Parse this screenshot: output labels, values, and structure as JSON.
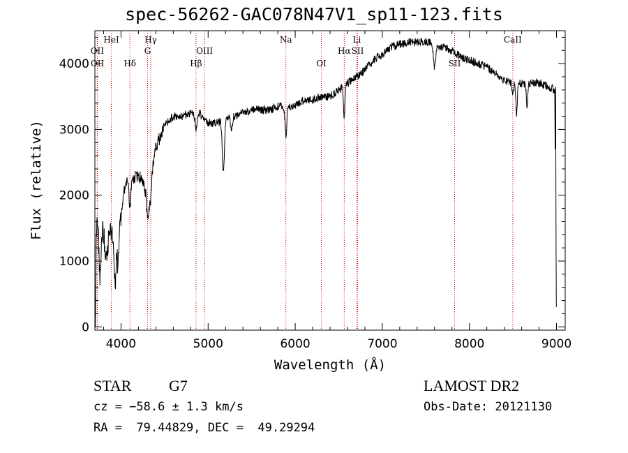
{
  "title": "spec-56262-GAC078N47V1_sp11-123.fits",
  "info": {
    "object_class": "STAR",
    "subclass": "G7",
    "survey": "LAMOST DR2",
    "cz": "cz = −58.6 ± 1.3 km/s",
    "obs_date": "Obs-Date: 20121130",
    "radec": "RA =  79.44829, DEC =  49.29294"
  },
  "chart_data": {
    "type": "line",
    "title": "spec-56262-GAC078N47V1_sp11-123.fits",
    "xlabel": "Wavelength (Å)",
    "ylabel": "Flux (relative)",
    "xlim": [
      3700,
      9100
    ],
    "ylim": [
      -50,
      4500
    ],
    "xticks": [
      4000,
      5000,
      6000,
      7000,
      8000,
      9000
    ],
    "yticks": [
      0,
      1000,
      2000,
      3000,
      4000
    ],
    "line_color": "#000000",
    "marker_color": "#cc0000",
    "spectral_lines": [
      {
        "label": "OII",
        "wavelength": 3727,
        "row": 1
      },
      {
        "label": "OII",
        "wavelength": 3729,
        "row": 2
      },
      {
        "label": "HeI",
        "wavelength": 3889,
        "row": 0
      },
      {
        "label": "Hδ",
        "wavelength": 4102,
        "row": 2
      },
      {
        "label": "Hγ",
        "wavelength": 4341,
        "row": 0
      },
      {
        "label": "G",
        "wavelength": 4305,
        "row": 1
      },
      {
        "label": "Hβ",
        "wavelength": 4861,
        "row": 2
      },
      {
        "label": "OIII",
        "wavelength": 4959,
        "row": 1
      },
      {
        "label": "Na",
        "wavelength": 5893,
        "row": 0
      },
      {
        "label": "OI",
        "wavelength": 6300,
        "row": 2
      },
      {
        "label": "Hα",
        "wavelength": 6563,
        "row": 1
      },
      {
        "label": "Li",
        "wavelength": 6708,
        "row": 0
      },
      {
        "label": "SII",
        "wavelength": 6717,
        "row": 1
      },
      {
        "label": "SII",
        "wavelength": 7830,
        "row": 2
      },
      {
        "label": "CaII",
        "wavelength": 8498,
        "row": 0
      }
    ],
    "continuum": {
      "x": [
        3700,
        3720,
        3750,
        3800,
        3850,
        3900,
        3950,
        4000,
        4050,
        4100,
        4150,
        4200,
        4250,
        4300,
        4350,
        4400,
        4450,
        4500,
        4550,
        4600,
        4700,
        4800,
        4900,
        5000,
        5100,
        5200,
        5300,
        5400,
        5500,
        5600,
        5700,
        5800,
        5900,
        6000,
        6100,
        6200,
        6300,
        6400,
        6500,
        6600,
        6700,
        6800,
        6900,
        7000,
        7100,
        7200,
        7300,
        7400,
        7500,
        7600,
        7700,
        7800,
        7900,
        8000,
        8100,
        8200,
        8300,
        8400,
        8500,
        8600,
        8700,
        8800,
        8900,
        8980
      ],
      "y": [
        200,
        1500,
        1500,
        1500,
        1450,
        1500,
        1550,
        1700,
        2200,
        2150,
        2250,
        2300,
        2200,
        2050,
        2400,
        2700,
        2900,
        3050,
        3150,
        3200,
        3200,
        3250,
        3250,
        3100,
        3100,
        3150,
        3200,
        3250,
        3300,
        3300,
        3300,
        3350,
        3350,
        3350,
        3450,
        3450,
        3500,
        3500,
        3600,
        3700,
        3800,
        3900,
        4050,
        4150,
        4250,
        4300,
        4320,
        4330,
        4330,
        4300,
        4250,
        4200,
        4100,
        4050,
        4000,
        3950,
        3850,
        3750,
        3700,
        3700,
        3700,
        3700,
        3650,
        3600
      ]
    },
    "absorption_features": [
      {
        "x": 3760,
        "depth": 700,
        "width": 12
      },
      {
        "x": 3830,
        "depth": 500,
        "width": 15
      },
      {
        "x": 3934,
        "depth": 800,
        "width": 12
      },
      {
        "x": 3968,
        "depth": 700,
        "width": 10
      },
      {
        "x": 4102,
        "depth": 300,
        "width": 10
      },
      {
        "x": 4310,
        "depth": 500,
        "width": 14
      },
      {
        "x": 4341,
        "depth": 350,
        "width": 10
      },
      {
        "x": 4861,
        "depth": 250,
        "width": 10
      },
      {
        "x": 5175,
        "depth": 800,
        "width": 12
      },
      {
        "x": 5270,
        "depth": 200,
        "width": 10
      },
      {
        "x": 5893,
        "depth": 450,
        "width": 10
      },
      {
        "x": 6563,
        "depth": 500,
        "width": 8
      },
      {
        "x": 7600,
        "depth": 350,
        "width": 14
      },
      {
        "x": 8498,
        "depth": 200,
        "width": 8
      },
      {
        "x": 8542,
        "depth": 450,
        "width": 8
      },
      {
        "x": 8662,
        "depth": 350,
        "width": 8
      }
    ],
    "edges": [
      {
        "x": 3705,
        "y": 0
      },
      {
        "x": 8985,
        "y": 2700
      },
      {
        "x": 8990,
        "y": 3650
      },
      {
        "x": 8995,
        "y": 1200
      },
      {
        "x": 8998,
        "y": 300
      }
    ],
    "noise": {
      "amplitude": 90,
      "seed": 56262
    }
  }
}
